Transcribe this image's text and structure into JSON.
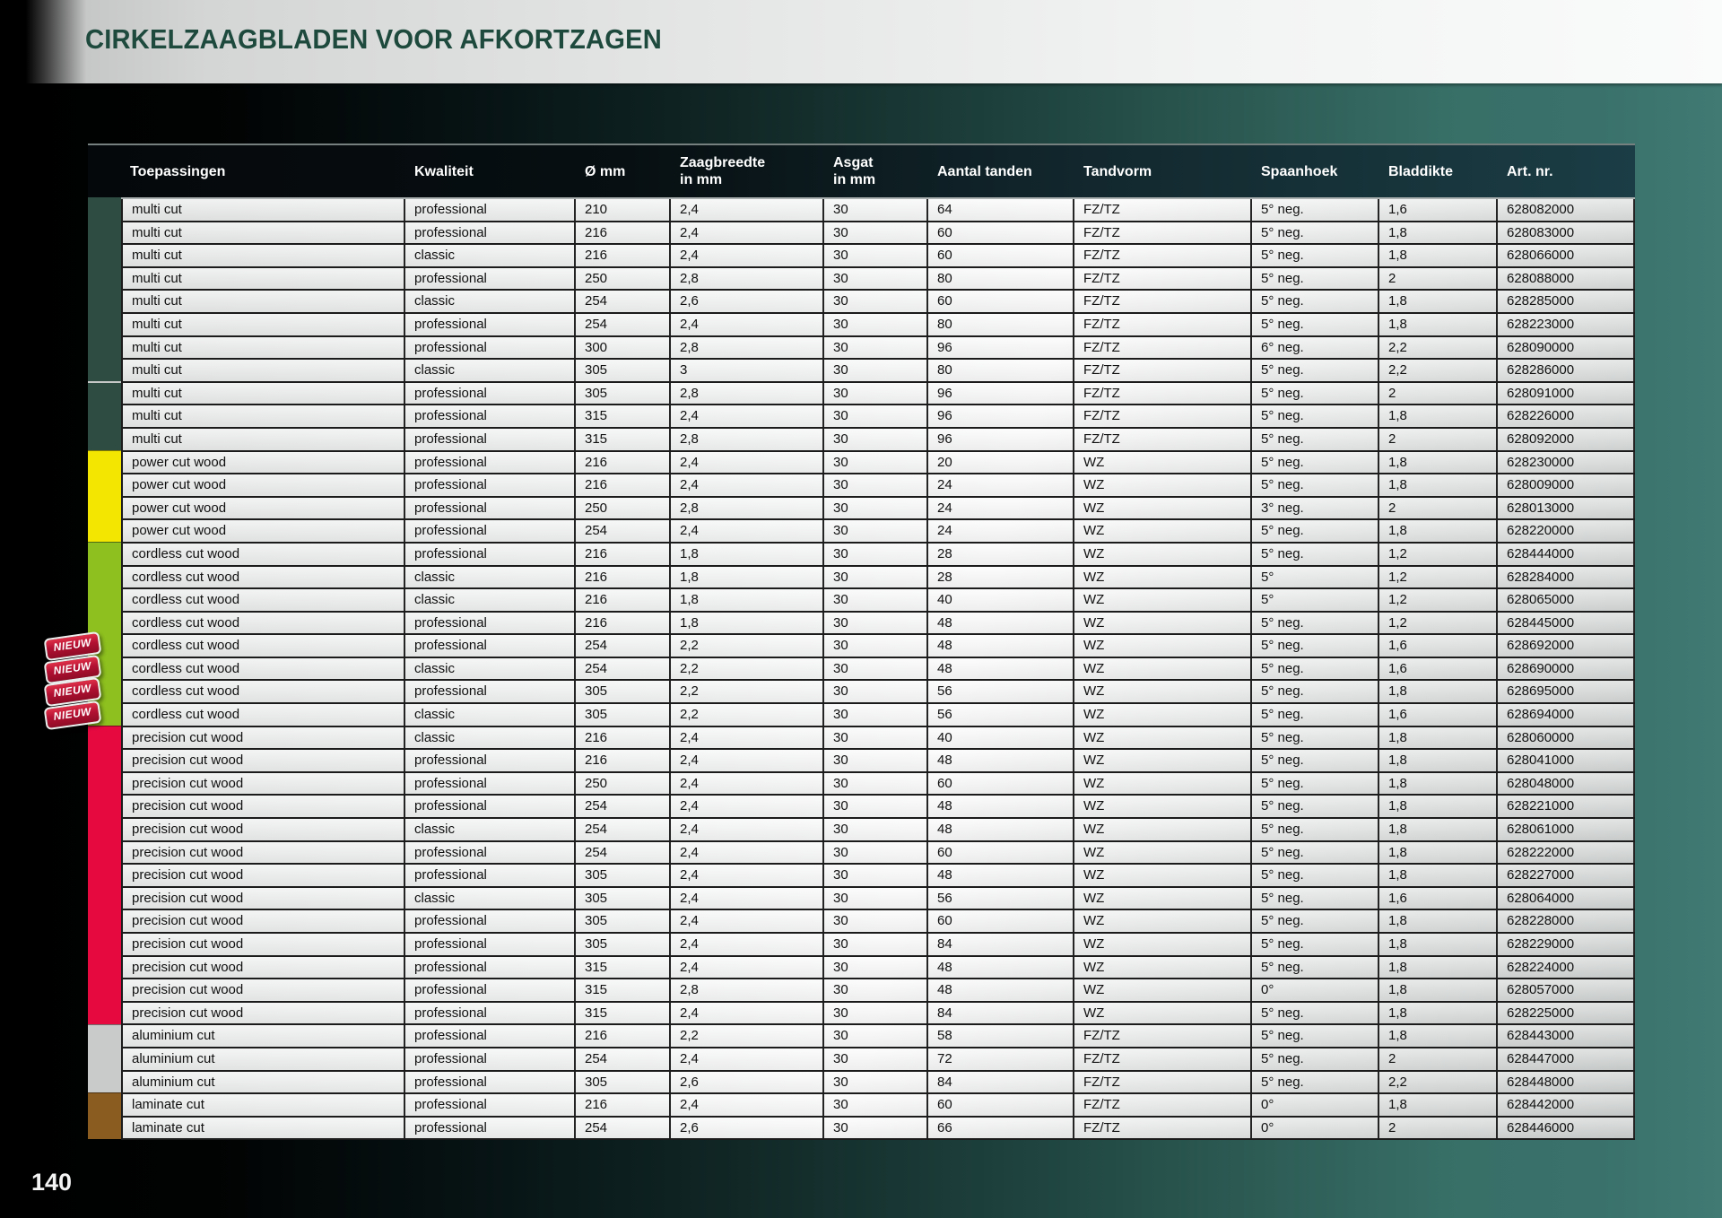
{
  "header": {
    "title": "CIRKELZAAGBLADEN VOOR AFKORTZAGEN"
  },
  "footer": {
    "page_number": "140"
  },
  "badge": {
    "label": "NIEUW",
    "color": "#b31133"
  },
  "table": {
    "columns": [
      "Toepassingen",
      "Kwaliteit",
      "Ø mm",
      "Zaagbreedte\nin mm",
      "Asgat\nin mm",
      "Aantal tanden",
      "Tandvorm",
      "Spaanhoek",
      "Bladdikte",
      "Art. nr."
    ],
    "groups": [
      {
        "name": "multi cut",
        "color": "#2f4c42",
        "segments": [
          8,
          3
        ],
        "new_badge_rows": [],
        "rows": [
          [
            "multi cut",
            "professional",
            "210",
            "2,4",
            "30",
            "64",
            "FZ/TZ",
            "5° neg.",
            "1,6",
            "628082000"
          ],
          [
            "multi cut",
            "professional",
            "216",
            "2,4",
            "30",
            "60",
            "FZ/TZ",
            "5° neg.",
            "1,8",
            "628083000"
          ],
          [
            "multi cut",
            "classic",
            "216",
            "2,4",
            "30",
            "60",
            "FZ/TZ",
            "5° neg.",
            "1,8",
            "628066000"
          ],
          [
            "multi cut",
            "professional",
            "250",
            "2,8",
            "30",
            "80",
            "FZ/TZ",
            "5° neg.",
            "2",
            "628088000"
          ],
          [
            "multi cut",
            "classic",
            "254",
            "2,6",
            "30",
            "60",
            "FZ/TZ",
            "5° neg.",
            "1,8",
            "628285000"
          ],
          [
            "multi cut",
            "professional",
            "254",
            "2,4",
            "30",
            "80",
            "FZ/TZ",
            "5° neg.",
            "1,8",
            "628223000"
          ],
          [
            "multi cut",
            "professional",
            "300",
            "2,8",
            "30",
            "96",
            "FZ/TZ",
            "6° neg.",
            "2,2",
            "628090000"
          ],
          [
            "multi cut",
            "classic",
            "305",
            "3",
            "30",
            "80",
            "FZ/TZ",
            "5° neg.",
            "2,2",
            "628286000"
          ],
          [
            "multi cut",
            "professional",
            "305",
            "2,8",
            "30",
            "96",
            "FZ/TZ",
            "5° neg.",
            "2",
            "628091000"
          ],
          [
            "multi cut",
            "professional",
            "315",
            "2,4",
            "30",
            "96",
            "FZ/TZ",
            "5° neg.",
            "1,8",
            "628226000"
          ],
          [
            "multi cut",
            "professional",
            "315",
            "2,8",
            "30",
            "96",
            "FZ/TZ",
            "5° neg.",
            "2",
            "628092000"
          ]
        ]
      },
      {
        "name": "power cut wood",
        "color": "#f3e600",
        "segments": [
          4
        ],
        "new_badge_rows": [],
        "rows": [
          [
            "power cut wood",
            "professional",
            "216",
            "2,4",
            "30",
            "20",
            "WZ",
            "5° neg.",
            "1,8",
            "628230000"
          ],
          [
            "power cut wood",
            "professional",
            "216",
            "2,4",
            "30",
            "24",
            "WZ",
            "5° neg.",
            "1,8",
            "628009000"
          ],
          [
            "power cut wood",
            "professional",
            "250",
            "2,8",
            "30",
            "24",
            "WZ",
            "3° neg.",
            "2",
            "628013000"
          ],
          [
            "power cut wood",
            "professional",
            "254",
            "2,4",
            "30",
            "24",
            "WZ",
            "5° neg.",
            "1,8",
            "628220000"
          ]
        ]
      },
      {
        "name": "cordless cut wood",
        "color": "#8ec01f",
        "segments": [
          8
        ],
        "new_badge_rows": [
          4,
          5,
          6,
          7
        ],
        "rows": [
          [
            "cordless cut wood",
            "professional",
            "216",
            "1,8",
            "30",
            "28",
            "WZ",
            "5° neg.",
            "1,2",
            "628444000"
          ],
          [
            "cordless cut wood",
            "classic",
            "216",
            "1,8",
            "30",
            "28",
            "WZ",
            "5°",
            "1,2",
            "628284000"
          ],
          [
            "cordless cut wood",
            "classic",
            "216",
            "1,8",
            "30",
            "40",
            "WZ",
            "5°",
            "1,2",
            "628065000"
          ],
          [
            "cordless cut wood",
            "professional",
            "216",
            "1,8",
            "30",
            "48",
            "WZ",
            "5° neg.",
            "1,2",
            "628445000"
          ],
          [
            "cordless cut wood",
            "professional",
            "254",
            "2,2",
            "30",
            "48",
            "WZ",
            "5° neg.",
            "1,6",
            "628692000"
          ],
          [
            "cordless cut wood",
            "classic",
            "254",
            "2,2",
            "30",
            "48",
            "WZ",
            "5° neg.",
            "1,6",
            "628690000"
          ],
          [
            "cordless cut wood",
            "professional",
            "305",
            "2,2",
            "30",
            "56",
            "WZ",
            "5° neg.",
            "1,8",
            "628695000"
          ],
          [
            "cordless cut wood",
            "classic",
            "305",
            "2,2",
            "30",
            "56",
            "WZ",
            "5° neg.",
            "1,6",
            "628694000"
          ]
        ]
      },
      {
        "name": "precision cut wood",
        "color": "#e50940",
        "segments": [
          13
        ],
        "new_badge_rows": [],
        "rows": [
          [
            "precision cut wood",
            "classic",
            "216",
            "2,4",
            "30",
            "40",
            "WZ",
            "5° neg.",
            "1,8",
            "628060000"
          ],
          [
            "precision cut wood",
            "professional",
            "216",
            "2,4",
            "30",
            "48",
            "WZ",
            "5° neg.",
            "1,8",
            "628041000"
          ],
          [
            "precision cut wood",
            "professional",
            "250",
            "2,4",
            "30",
            "60",
            "WZ",
            "5° neg.",
            "1,8",
            "628048000"
          ],
          [
            "precision cut wood",
            "professional",
            "254",
            "2,4",
            "30",
            "48",
            "WZ",
            "5° neg.",
            "1,8",
            "628221000"
          ],
          [
            "precision cut wood",
            "classic",
            "254",
            "2,4",
            "30",
            "48",
            "WZ",
            "5° neg.",
            "1,8",
            "628061000"
          ],
          [
            "precision cut wood",
            "professional",
            "254",
            "2,4",
            "30",
            "60",
            "WZ",
            "5° neg.",
            "1,8",
            "628222000"
          ],
          [
            "precision cut wood",
            "professional",
            "305",
            "2,4",
            "30",
            "48",
            "WZ",
            "5° neg.",
            "1,8",
            "628227000"
          ],
          [
            "precision cut wood",
            "classic",
            "305",
            "2,4",
            "30",
            "56",
            "WZ",
            "5° neg.",
            "1,6",
            "628064000"
          ],
          [
            "precision cut wood",
            "professional",
            "305",
            "2,4",
            "30",
            "60",
            "WZ",
            "5° neg.",
            "1,8",
            "628228000"
          ],
          [
            "precision cut wood",
            "professional",
            "305",
            "2,4",
            "30",
            "84",
            "WZ",
            "5° neg.",
            "1,8",
            "628229000"
          ],
          [
            "precision cut wood",
            "professional",
            "315",
            "2,4",
            "30",
            "48",
            "WZ",
            "5° neg.",
            "1,8",
            "628224000"
          ],
          [
            "precision cut wood",
            "professional",
            "315",
            "2,8",
            "30",
            "48",
            "WZ",
            "0°",
            "1,8",
            "628057000"
          ],
          [
            "precision cut wood",
            "professional",
            "315",
            "2,4",
            "30",
            "84",
            "WZ",
            "5° neg.",
            "1,8",
            "628225000"
          ]
        ]
      },
      {
        "name": "aluminium cut",
        "color": "#c9cbca",
        "segments": [
          3
        ],
        "new_badge_rows": [],
        "rows": [
          [
            "aluminium cut",
            "professional",
            "216",
            "2,2",
            "30",
            "58",
            "FZ/TZ",
            "5° neg.",
            "1,8",
            "628443000"
          ],
          [
            "aluminium cut",
            "professional",
            "254",
            "2,4",
            "30",
            "72",
            "FZ/TZ",
            "5° neg.",
            "2",
            "628447000"
          ],
          [
            "aluminium cut",
            "professional",
            "305",
            "2,6",
            "30",
            "84",
            "FZ/TZ",
            "5° neg.",
            "2,2",
            "628448000"
          ]
        ]
      },
      {
        "name": "laminate cut",
        "color": "#8a5c20",
        "segments": [
          2
        ],
        "new_badge_rows": [],
        "rows": [
          [
            "laminate cut",
            "professional",
            "216",
            "2,4",
            "30",
            "60",
            "FZ/TZ",
            "0°",
            "1,8",
            "628442000"
          ],
          [
            "laminate cut",
            "professional",
            "254",
            "2,6",
            "30",
            "66",
            "FZ/TZ",
            "0°",
            "2",
            "628446000"
          ]
        ]
      }
    ]
  }
}
